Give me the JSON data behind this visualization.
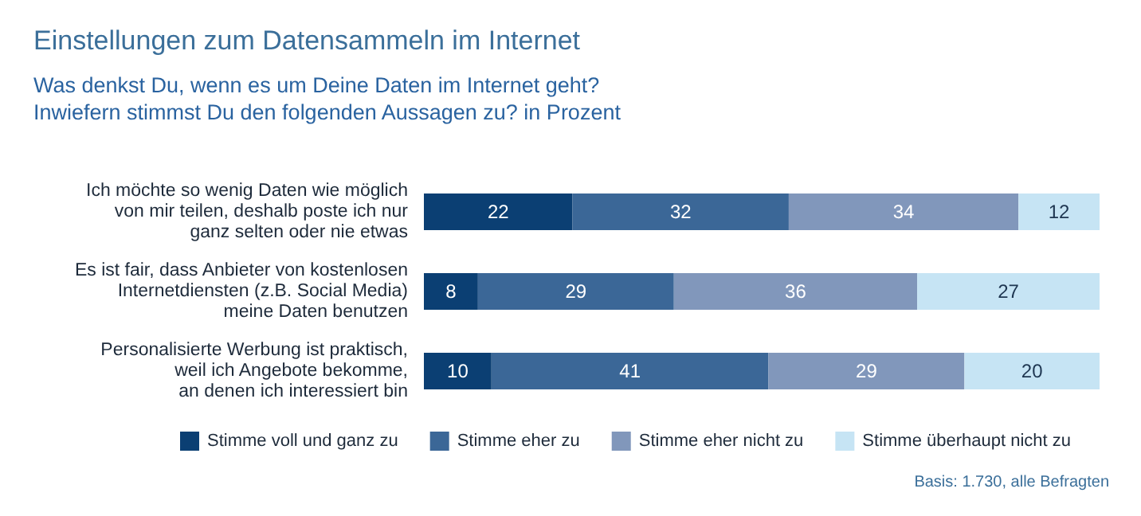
{
  "chart_data": {
    "type": "bar",
    "orientation": "horizontal",
    "stacked": true,
    "data_labels": true,
    "legend": "bottom",
    "title": "Einstellungen zum Datensammeln im Internet",
    "subtitle": "Was denkst Du, wenn es um Deine Daten im Internet geht?\nInwiefern stimmst Du den folgenden Aussagen zu? in Prozent",
    "categories": [
      "Ich möchte so wenig Daten wie möglich\nvon mir teilen, deshalb poste ich nur\nganz selten oder nie etwas",
      "Es ist fair, dass Anbieter von kostenlosen\nInternetdiensten (z.B. Social Media)\nmeine Daten benutzen",
      "Personalisierte Werbung ist praktisch,\nweil ich Angebote bekomme,\nan denen ich interessiert bin"
    ],
    "series": [
      {
        "name": "Stimme voll und ganz zu",
        "color": "#0b3f73",
        "values": [
          22,
          8,
          10
        ]
      },
      {
        "name": "Stimme eher zu",
        "color": "#3b6797",
        "values": [
          32,
          29,
          41
        ]
      },
      {
        "name": "Stimme eher nicht zu",
        "color": "#8197bb",
        "values": [
          34,
          36,
          29
        ]
      },
      {
        "name": "Stimme überhaupt nicht zu",
        "color": "#c6e4f4",
        "values": [
          12,
          27,
          20
        ]
      }
    ],
    "annotations": [
      "Basis: 1.730, alle Befragten"
    ]
  }
}
